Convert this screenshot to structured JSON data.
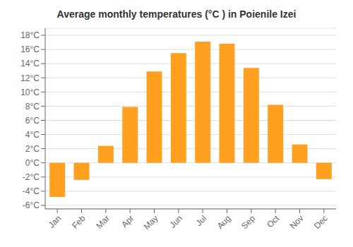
{
  "chart_data": {
    "type": "bar",
    "title": "Average monthly temperatures (°C ) in Poienile Izei",
    "categories": [
      "Jan",
      "Feb",
      "Mar",
      "Apr",
      "May",
      "Jun",
      "Jul",
      "Aug",
      "Sep",
      "Oct",
      "Nov",
      "Dec"
    ],
    "values": [
      -4.8,
      -2.4,
      2.4,
      7.9,
      12.9,
      15.5,
      17.1,
      16.8,
      13.4,
      8.2,
      2.6,
      -2.3
    ],
    "color": "#FFA020",
    "ylim": [
      -6.5,
      19
    ],
    "yticks": [
      {
        "value": -6,
        "label": "-6°C"
      },
      {
        "value": -4,
        "label": "-4°C"
      },
      {
        "value": -2,
        "label": "-2°C"
      },
      {
        "value": 0,
        "label": "0°C"
      },
      {
        "value": 2,
        "label": "2°C"
      },
      {
        "value": 4,
        "label": "4°C"
      },
      {
        "value": 6,
        "label": "6°C"
      },
      {
        "value": 8,
        "label": "8°C"
      },
      {
        "value": 10,
        "label": "10°C"
      },
      {
        "value": 12,
        "label": "12°C"
      },
      {
        "value": 14,
        "label": "14°C"
      },
      {
        "value": 16,
        "label": "16°C"
      },
      {
        "value": 18,
        "label": "18°C"
      }
    ],
    "grid": true
  }
}
